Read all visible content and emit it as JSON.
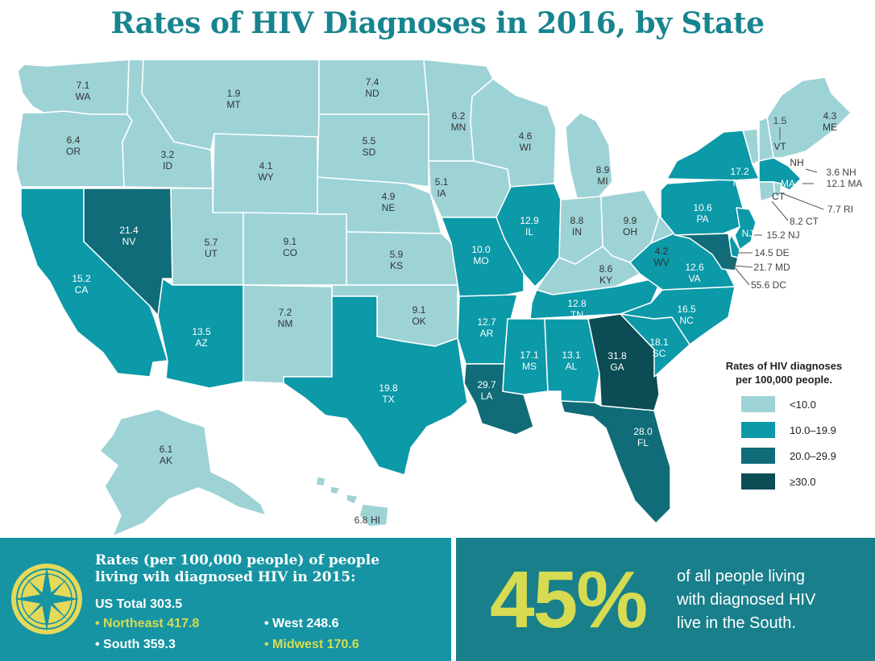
{
  "title": "Rates of HIV Diagnoses in 2016, by State",
  "colors": {
    "bin1": "#9ed3d6",
    "bin2": "#0c99a8",
    "bin3": "#106c78",
    "bin4": "#0b4c55",
    "border": "#ffffff",
    "title": "#17848f",
    "highlight": "#d6db52"
  },
  "legend": {
    "title_line1": "Rates of HIV diagnoses",
    "title_line2": "per 100,000 people.",
    "bins": [
      "<10.0",
      "10.0–19.9",
      "20.0–29.9",
      "≥30.0"
    ]
  },
  "states": [
    {
      "abbr": "WA",
      "rate": "7.1"
    },
    {
      "abbr": "OR",
      "rate": "6.4"
    },
    {
      "abbr": "CA",
      "rate": "15.2"
    },
    {
      "abbr": "NV",
      "rate": "21.4"
    },
    {
      "abbr": "ID",
      "rate": "3.2"
    },
    {
      "abbr": "MT",
      "rate": "1.9"
    },
    {
      "abbr": "WY",
      "rate": "4.1"
    },
    {
      "abbr": "UT",
      "rate": "5.7"
    },
    {
      "abbr": "AZ",
      "rate": "13.5"
    },
    {
      "abbr": "CO",
      "rate": "9.1"
    },
    {
      "abbr": "NM",
      "rate": "7.2"
    },
    {
      "abbr": "ND",
      "rate": "7.4"
    },
    {
      "abbr": "SD",
      "rate": "5.5"
    },
    {
      "abbr": "NE",
      "rate": "4.9"
    },
    {
      "abbr": "KS",
      "rate": "5.9"
    },
    {
      "abbr": "OK",
      "rate": "9.1"
    },
    {
      "abbr": "TX",
      "rate": "19.8"
    },
    {
      "abbr": "MN",
      "rate": "6.2"
    },
    {
      "abbr": "IA",
      "rate": "5.1"
    },
    {
      "abbr": "MO",
      "rate": "10.0"
    },
    {
      "abbr": "AR",
      "rate": "12.7"
    },
    {
      "abbr": "LA",
      "rate": "29.7"
    },
    {
      "abbr": "WI",
      "rate": "4.6"
    },
    {
      "abbr": "IL",
      "rate": "12.9"
    },
    {
      "abbr": "MI",
      "rate": "8.9"
    },
    {
      "abbr": "IN",
      "rate": "8.8"
    },
    {
      "abbr": "OH",
      "rate": "9.9"
    },
    {
      "abbr": "KY",
      "rate": "8.6"
    },
    {
      "abbr": "TN",
      "rate": "12.8"
    },
    {
      "abbr": "MS",
      "rate": "17.1"
    },
    {
      "abbr": "AL",
      "rate": "13.1"
    },
    {
      "abbr": "GA",
      "rate": "31.8"
    },
    {
      "abbr": "FL",
      "rate": "28.0"
    },
    {
      "abbr": "SC",
      "rate": "18.1"
    },
    {
      "abbr": "NC",
      "rate": "16.5"
    },
    {
      "abbr": "VA",
      "rate": "12.6"
    },
    {
      "abbr": "WV",
      "rate": "4.2"
    },
    {
      "abbr": "PA",
      "rate": "10.6"
    },
    {
      "abbr": "NY",
      "rate": "17.2"
    },
    {
      "abbr": "VT",
      "rate": "1.5"
    },
    {
      "abbr": "NH",
      "rate": "3.6"
    },
    {
      "abbr": "ME",
      "rate": "4.3"
    },
    {
      "abbr": "MA",
      "rate": "12.1"
    },
    {
      "abbr": "RI",
      "rate": "7.7"
    },
    {
      "abbr": "CT",
      "rate": "8.2"
    },
    {
      "abbr": "NJ",
      "rate": "15.2"
    },
    {
      "abbr": "DE",
      "rate": "14.5"
    },
    {
      "abbr": "MD",
      "rate": "21.7"
    },
    {
      "abbr": "DC",
      "rate": "55.6"
    },
    {
      "abbr": "AK",
      "rate": "6.1"
    },
    {
      "abbr": "HI",
      "rate": "6.8"
    }
  ],
  "bottom_left": {
    "title_line1": "Rates (per 100,000 people) of people",
    "title_line2": "living wih diagnosed HIV in 2015:",
    "total": "US Total 303.5",
    "items": [
      {
        "label": "Northeast 417.8",
        "color": "#d6db52"
      },
      {
        "label": "West 248.6",
        "color": "#ffffff"
      },
      {
        "label": "South 359.3",
        "color": "#ffffff"
      },
      {
        "label": "Midwest 170.6",
        "color": "#d6db52"
      }
    ]
  },
  "bottom_right": {
    "big": "45%",
    "line1": "of all people living",
    "line2": "with diagnosed HIV",
    "line3": "live in the South."
  }
}
